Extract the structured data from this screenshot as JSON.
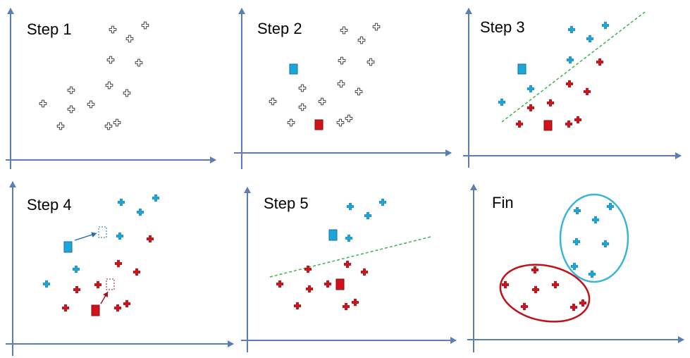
{
  "colors": {
    "axis": "#5b7fb5",
    "neutral": "#555555",
    "blue": "#1aa7dc",
    "red": "#d0121b",
    "boundary": "#3cb44a",
    "blue_ellipse": "#38b6d6",
    "red_ellipse": "#c0121b"
  },
  "panels": [
    {
      "id": "step1",
      "title": "Step 1"
    },
    {
      "id": "step2",
      "title": "Step 2"
    },
    {
      "id": "step3",
      "title": "Step 3"
    },
    {
      "id": "step4",
      "title": "Step 4"
    },
    {
      "id": "step5",
      "title": "Step 5"
    },
    {
      "id": "fin",
      "title": "Fin"
    }
  ],
  "icons": {
    "point": "plus-marker-icon",
    "centroid": "square-centroid-icon",
    "previous_centroid": "dashed-square-icon",
    "move": "arrow-icon"
  }
}
